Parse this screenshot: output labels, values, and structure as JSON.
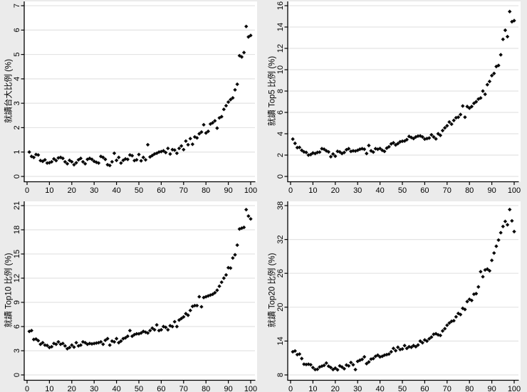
{
  "style": {
    "background_color": "#ebebeb",
    "plot_background_color": "#ffffff",
    "grid_color": "#e3e3e3",
    "axis_color": "#000000",
    "tick_label_color": "#000000",
    "marker_color": "#0a0a0a",
    "marker_shape": "diamond",
    "tick_font_size": 11,
    "ylabel_font_size": 11.5
  },
  "chart_data": [
    {
      "type": "scatter",
      "title": "",
      "xlabel": "",
      "ylabel": "就讀台大比例 (%)",
      "xlim": [
        0,
        100
      ],
      "ylim": [
        0,
        7
      ],
      "xticks": [
        0,
        10,
        20,
        30,
        40,
        50,
        60,
        70,
        80,
        90,
        100
      ],
      "yticks": [
        0,
        1,
        2,
        3,
        4,
        5,
        6,
        7
      ],
      "grid": "horizontal",
      "legend": "none",
      "x_start": 1,
      "x_note": "x = percentile rank 1-100",
      "values": [
        1.0,
        0.82,
        0.78,
        0.9,
        0.88,
        0.65,
        0.62,
        0.68,
        0.55,
        0.56,
        0.6,
        0.72,
        0.65,
        0.76,
        0.78,
        0.74,
        0.6,
        0.52,
        0.66,
        0.6,
        0.48,
        0.56,
        0.68,
        0.74,
        0.6,
        0.52,
        0.7,
        0.74,
        0.7,
        0.62,
        0.58,
        0.55,
        0.82,
        0.78,
        0.7,
        0.48,
        0.45,
        0.6,
        0.95,
        0.66,
        0.78,
        0.55,
        0.66,
        0.72,
        0.7,
        0.88,
        0.85,
        0.65,
        0.68,
        0.9,
        0.64,
        0.78,
        0.68,
        1.3,
        0.8,
        0.86,
        0.92,
        0.95,
        1.0,
        1.02,
        1.05,
        0.98,
        1.15,
        0.92,
        1.1,
        1.08,
        0.95,
        1.15,
        1.25,
        1.1,
        1.45,
        1.3,
        1.55,
        1.32,
        1.62,
        1.58,
        1.75,
        1.82,
        2.12,
        1.78,
        1.85,
        2.15,
        2.2,
        2.28,
        1.98,
        2.4,
        2.45,
        2.75,
        2.9,
        3.05,
        3.15,
        3.22,
        3.55,
        3.78,
        4.95,
        4.9,
        5.08,
        6.15,
        5.72,
        5.78
      ]
    },
    {
      "type": "scatter",
      "title": "",
      "xlabel": "",
      "ylabel": "就讀 Top5 比例 (%)",
      "xlim": [
        0,
        100
      ],
      "ylim": [
        0,
        16
      ],
      "xticks": [
        0,
        10,
        20,
        30,
        40,
        50,
        60,
        70,
        80,
        90,
        100
      ],
      "yticks": [
        0,
        2,
        4,
        6,
        8,
        10,
        12,
        14,
        16
      ],
      "grid": "horizontal",
      "legend": "none",
      "x_start": 1,
      "x_note": "x = percentile rank 1-100",
      "values": [
        3.5,
        3.1,
        2.7,
        2.72,
        2.45,
        2.3,
        2.25,
        2.0,
        2.05,
        2.2,
        2.15,
        2.25,
        2.28,
        2.6,
        2.55,
        2.4,
        2.3,
        1.85,
        2.1,
        1.9,
        2.35,
        2.3,
        2.15,
        2.25,
        2.5,
        2.6,
        2.35,
        2.4,
        2.38,
        2.45,
        2.55,
        2.6,
        2.55,
        2.15,
        2.9,
        2.4,
        2.28,
        2.6,
        2.55,
        2.62,
        2.45,
        2.35,
        2.65,
        2.78,
        3.05,
        3.15,
        2.95,
        3.08,
        3.25,
        3.3,
        3.32,
        3.45,
        3.75,
        3.65,
        3.55,
        3.7,
        3.78,
        3.8,
        3.7,
        3.5,
        3.55,
        3.6,
        3.9,
        3.7,
        3.52,
        4.0,
        3.85,
        4.3,
        4.55,
        4.75,
        5.1,
        4.9,
        5.25,
        5.5,
        5.55,
        5.8,
        6.6,
        5.55,
        6.55,
        6.4,
        6.55,
        6.85,
        7.0,
        7.25,
        7.35,
        8.0,
        7.7,
        8.6,
        8.9,
        9.45,
        9.65,
        10.3,
        10.4,
        11.4,
        12.85,
        13.7,
        13.1,
        15.45,
        14.5,
        14.6
      ]
    },
    {
      "type": "scatter",
      "title": "",
      "xlabel": "",
      "ylabel": "就讀 Top10 比例 (%)",
      "xlim": [
        0,
        100
      ],
      "ylim": [
        0,
        21
      ],
      "xticks": [
        0,
        10,
        20,
        30,
        40,
        50,
        60,
        70,
        80,
        90,
        100
      ],
      "yticks": [
        0,
        3,
        6,
        9,
        12,
        15,
        18,
        21
      ],
      "grid": "horizontal",
      "legend": "none",
      "x_start": 1,
      "x_note": "x = percentile rank 1-100",
      "values": [
        5.4,
        5.5,
        4.4,
        4.45,
        4.25,
        3.8,
        4.0,
        3.7,
        3.65,
        3.4,
        3.5,
        3.9,
        3.8,
        4.1,
        3.8,
        3.9,
        3.6,
        3.25,
        3.4,
        3.7,
        3.45,
        4.0,
        3.6,
        3.7,
        4.1,
        4.0,
        3.8,
        3.9,
        3.85,
        3.9,
        3.95,
        4.0,
        4.1,
        3.8,
        4.3,
        4.5,
        3.7,
        4.2,
        4.1,
        4.5,
        4.0,
        4.2,
        4.5,
        4.6,
        4.8,
        5.5,
        4.8,
        5.0,
        5.1,
        5.1,
        5.2,
        5.4,
        5.3,
        5.2,
        5.5,
        5.8,
        5.6,
        6.2,
        5.5,
        5.6,
        6.0,
        5.9,
        5.6,
        6.1,
        6.0,
        6.6,
        6.0,
        6.8,
        7.0,
        7.2,
        7.6,
        7.4,
        8.0,
        8.5,
        8.6,
        8.6,
        9.7,
        8.45,
        9.6,
        9.7,
        9.8,
        9.9,
        10.0,
        10.2,
        10.5,
        11.0,
        11.5,
        12.0,
        12.4,
        13.3,
        13.25,
        14.5,
        14.9,
        16.1,
        18.1,
        18.2,
        18.3,
        20.5,
        19.7,
        19.35
      ]
    },
    {
      "type": "scatter",
      "title": "",
      "xlabel": "",
      "ylabel": "就讀 Top20 比例 (%)",
      "xlim": [
        0,
        100
      ],
      "ylim": [
        8,
        38
      ],
      "xticks": [
        0,
        10,
        20,
        30,
        40,
        50,
        60,
        70,
        80,
        90,
        100
      ],
      "yticks": [
        8,
        14,
        20,
        26,
        32,
        38
      ],
      "grid": "horizontal",
      "legend": "none",
      "x_start": 1,
      "x_note": "x = percentile rank 1-100",
      "values": [
        12.1,
        12.25,
        11.6,
        11.7,
        10.9,
        9.9,
        9.85,
        9.9,
        9.8,
        9.3,
        8.95,
        9.0,
        9.4,
        9.55,
        9.7,
        10.1,
        9.55,
        9.3,
        8.95,
        9.2,
        8.9,
        9.6,
        9.4,
        9.1,
        9.75,
        9.6,
        10.2,
        9.8,
        8.95,
        10.4,
        10.6,
        10.75,
        11.2,
        10.0,
        10.3,
        10.8,
        10.9,
        11.3,
        11.5,
        11.2,
        11.3,
        11.5,
        11.6,
        11.7,
        12.1,
        12.7,
        12.3,
        12.9,
        12.5,
        12.6,
        13.2,
        12.7,
        13.0,
        12.9,
        13.2,
        13.0,
        13.3,
        14.0,
        13.7,
        14.2,
        14.0,
        14.4,
        14.7,
        15.2,
        15.3,
        15.1,
        15.0,
        15.8,
        16.2,
        16.8,
        17.2,
        17.5,
        17.6,
        18.3,
        18.9,
        18.7,
        19.8,
        19.6,
        21.0,
        21.4,
        21.2,
        22.3,
        22.4,
        23.6,
        26.3,
        25.4,
        26.6,
        26.75,
        26.45,
        28.3,
        29.6,
        30.8,
        31.9,
        33.2,
        34.3,
        35.2,
        34.6,
        37.3,
        35.3,
        33.4
      ]
    }
  ]
}
